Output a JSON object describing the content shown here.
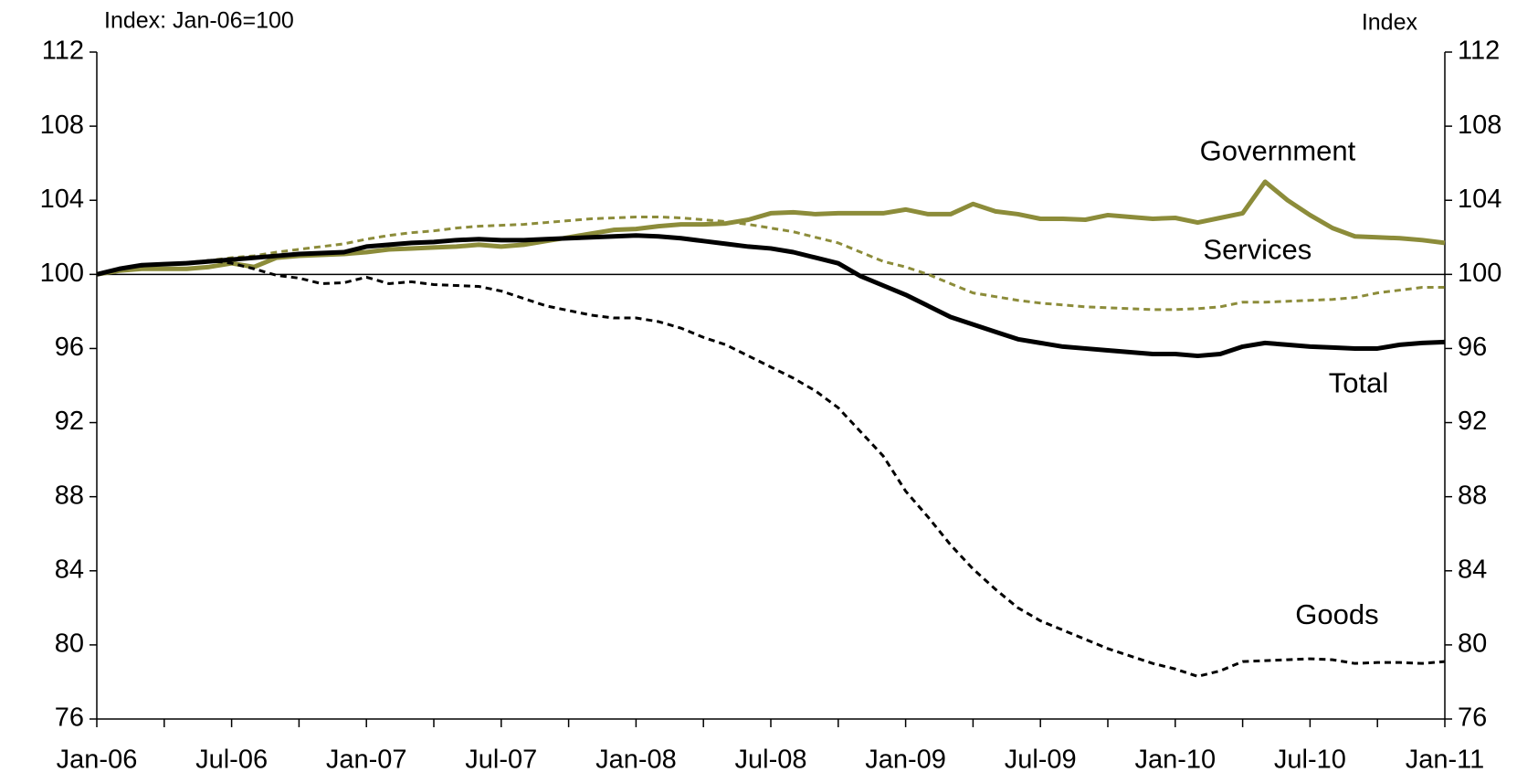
{
  "chart_data": {
    "type": "line",
    "y_label": "Index: Jan-06=100",
    "y2_label": "Index",
    "categories": [
      "Jan-06",
      null,
      null,
      null,
      null,
      null,
      "Jul-06",
      null,
      null,
      null,
      null,
      null,
      "Jan-07",
      null,
      null,
      null,
      null,
      null,
      "Jul-07",
      null,
      null,
      null,
      null,
      null,
      "Jan-08",
      null,
      null,
      null,
      null,
      null,
      "Jul-08",
      null,
      null,
      null,
      null,
      null,
      "Jan-09",
      null,
      null,
      null,
      null,
      null,
      "Jul-09",
      null,
      null,
      null,
      null,
      null,
      "Jan-10",
      null,
      null,
      null,
      null,
      null,
      "Jul-10",
      null,
      null,
      null,
      null,
      null,
      "Jan-11"
    ],
    "ylim": [
      76,
      112
    ],
    "yticks": [
      76,
      80,
      84,
      88,
      92,
      96,
      100,
      104,
      108,
      112
    ],
    "y2lim": [
      76,
      112
    ],
    "y2ticks": [
      76,
      80,
      84,
      88,
      92,
      96,
      100,
      104,
      108,
      112
    ],
    "reference_line": 100,
    "series": [
      {
        "name": "Government",
        "color": "#8c8c3a",
        "style": "solid",
        "values": [
          100,
          100.2,
          100.3,
          100.3,
          100.3,
          100.4,
          100.6,
          100.4,
          100.9,
          101.0,
          101.05,
          101.1,
          101.2,
          101.35,
          101.4,
          101.45,
          101.5,
          101.6,
          101.5,
          101.6,
          101.8,
          102.0,
          102.2,
          102.4,
          102.45,
          102.6,
          102.7,
          102.7,
          102.75,
          102.95,
          103.3,
          103.35,
          103.25,
          103.3,
          103.3,
          103.3,
          103.5,
          103.25,
          103.25,
          103.8,
          103.4,
          103.25,
          103.0,
          103.0,
          102.95,
          103.2,
          103.1,
          103.0,
          103.05,
          102.8,
          103.05,
          103.3,
          105.0,
          104.0,
          103.2,
          102.5,
          102.05,
          102.0,
          101.95,
          101.85,
          101.7
        ]
      },
      {
        "name": "Services",
        "color": "#8c8c3a",
        "style": "dashed",
        "values": [
          100,
          100.3,
          100.45,
          100.55,
          100.65,
          100.75,
          100.9,
          101.0,
          101.2,
          101.35,
          101.5,
          101.65,
          101.9,
          102.1,
          102.25,
          102.35,
          102.5,
          102.6,
          102.65,
          102.7,
          102.8,
          102.9,
          103.0,
          103.05,
          103.1,
          103.1,
          103.05,
          102.95,
          102.85,
          102.7,
          102.5,
          102.3,
          102.0,
          101.7,
          101.2,
          100.7,
          100.4,
          100.0,
          99.5,
          99.0,
          98.8,
          98.6,
          98.45,
          98.35,
          98.25,
          98.2,
          98.15,
          98.1,
          98.1,
          98.15,
          98.25,
          98.5,
          98.5,
          98.55,
          98.6,
          98.65,
          98.75,
          99.0,
          99.15,
          99.3,
          99.3
        ]
      },
      {
        "name": "Total",
        "color": "#000000",
        "style": "solid",
        "values": [
          100,
          100.3,
          100.5,
          100.55,
          100.6,
          100.7,
          100.8,
          100.9,
          101.0,
          101.1,
          101.15,
          101.2,
          101.5,
          101.6,
          101.7,
          101.75,
          101.85,
          101.9,
          101.85,
          101.85,
          101.9,
          101.95,
          102.0,
          102.05,
          102.1,
          102.05,
          101.95,
          101.8,
          101.65,
          101.5,
          101.4,
          101.2,
          100.9,
          100.6,
          99.9,
          99.4,
          98.9,
          98.3,
          97.7,
          97.3,
          96.9,
          96.5,
          96.3,
          96.1,
          96.0,
          95.9,
          95.8,
          95.7,
          95.7,
          95.6,
          95.7,
          96.1,
          96.3,
          96.2,
          96.1,
          96.05,
          96.0,
          96.0,
          96.2,
          96.3,
          96.35
        ]
      },
      {
        "name": "Goods",
        "color": "#000000",
        "style": "dashed",
        "values": [
          100,
          100.3,
          100.45,
          100.55,
          100.6,
          100.75,
          100.6,
          100.3,
          99.95,
          99.8,
          99.5,
          99.55,
          99.85,
          99.5,
          99.6,
          99.45,
          99.4,
          99.35,
          99.1,
          98.7,
          98.3,
          98.05,
          97.8,
          97.65,
          97.65,
          97.45,
          97.1,
          96.6,
          96.2,
          95.6,
          95.0,
          94.4,
          93.7,
          92.8,
          91.5,
          90.2,
          88.3,
          86.9,
          85.4,
          84.1,
          83.0,
          82.0,
          81.3,
          80.8,
          80.3,
          79.8,
          79.4,
          79.0,
          78.7,
          78.3,
          78.6,
          79.1,
          79.15,
          79.2,
          79.25,
          79.2,
          79.0,
          79.05,
          79.05,
          79.0,
          79.1
        ]
      }
    ]
  }
}
